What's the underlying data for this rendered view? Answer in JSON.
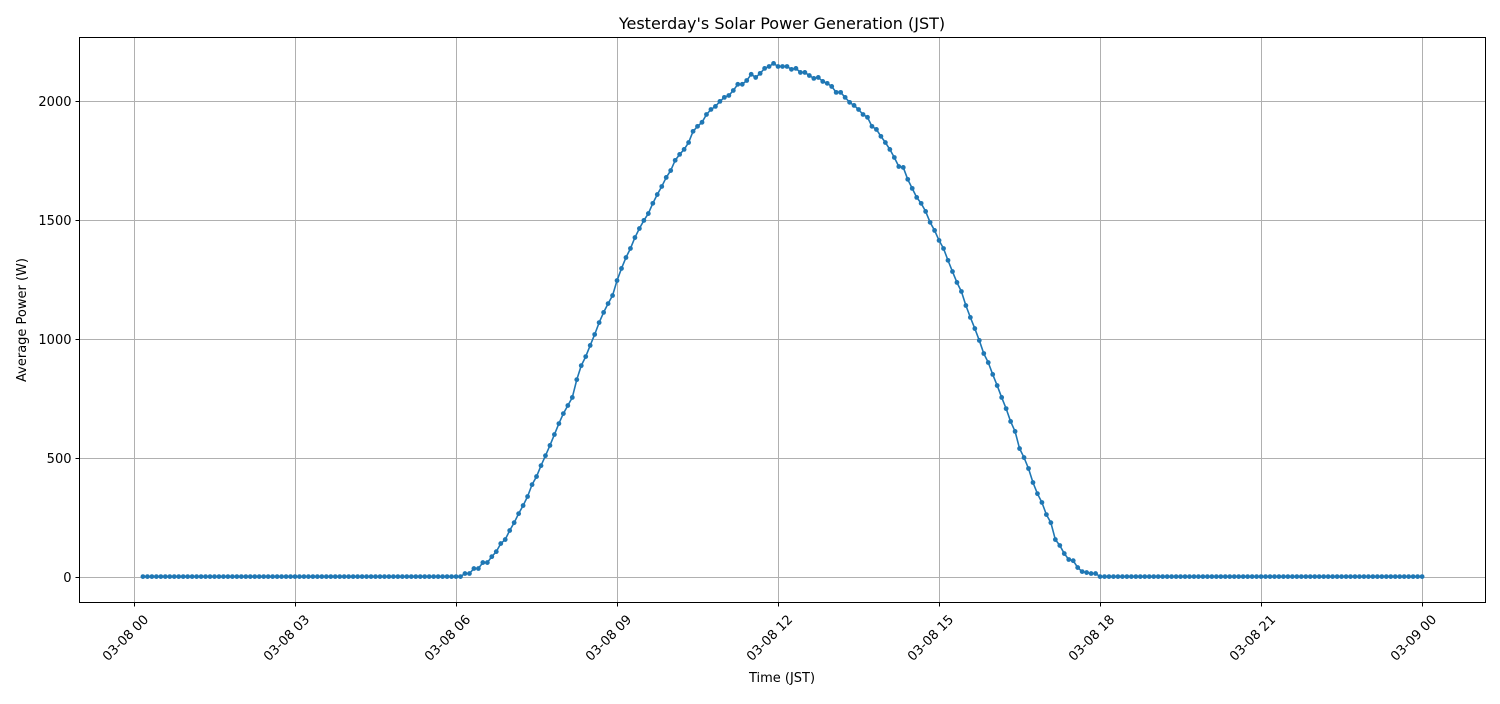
{
  "chart_data": {
    "type": "line",
    "title": "Yesterday's Solar Power Generation (JST)",
    "xlabel": "Time (JST)",
    "ylabel": "Average Power (W)",
    "xlim": [
      "03-07 22:58",
      "03-09 01:10"
    ],
    "ylim": [
      -109,
      2269
    ],
    "grid": true,
    "marker": "circle",
    "color": "#1f77b4",
    "x_ticks": [
      {
        "hour": 0,
        "label": "03-08 00"
      },
      {
        "hour": 3,
        "label": "03-08 03"
      },
      {
        "hour": 6,
        "label": "03-08 06"
      },
      {
        "hour": 9,
        "label": "03-08 09"
      },
      {
        "hour": 12,
        "label": "03-08 12"
      },
      {
        "hour": 15,
        "label": "03-08 15"
      },
      {
        "hour": 18,
        "label": "03-08 18"
      },
      {
        "hour": 21,
        "label": "03-08 21"
      },
      {
        "hour": 24,
        "label": "03-09 00"
      }
    ],
    "y_ticks": [
      0,
      500,
      1000,
      1500,
      2000
    ],
    "series": [
      {
        "x_start": "03-08 00:10",
        "x_interval_minutes": 5,
        "values": [
          0,
          0,
          0,
          0,
          0,
          0,
          0,
          0,
          0,
          0,
          0,
          0,
          0,
          0,
          0,
          0,
          0,
          0,
          0,
          0,
          0,
          0,
          0,
          0,
          0,
          0,
          0,
          0,
          0,
          0,
          0,
          0,
          0,
          0,
          0,
          0,
          0,
          0,
          0,
          0,
          0,
          0,
          0,
          0,
          0,
          0,
          0,
          0,
          0,
          0,
          0,
          0,
          0,
          0,
          0,
          0,
          0,
          0,
          0,
          0,
          0,
          0,
          0,
          0,
          0,
          0,
          0,
          0,
          0,
          0,
          0,
          0,
          13,
          13,
          34,
          34,
          59,
          59,
          84,
          105,
          139,
          156,
          194,
          227,
          265,
          299,
          337,
          387,
          421,
          467,
          509,
          552,
          598,
          644,
          686,
          720,
          754,
          829,
          888,
          926,
          973,
          1019,
          1069,
          1112,
          1149,
          1183,
          1246,
          1297,
          1343,
          1381,
          1427,
          1465,
          1499,
          1528,
          1571,
          1608,
          1642,
          1680,
          1709,
          1752,
          1777,
          1798,
          1827,
          1874,
          1895,
          1912,
          1945,
          1966,
          1979,
          2000,
          2017,
          2025,
          2046,
          2072,
          2072,
          2088,
          2114,
          2101,
          2118,
          2139,
          2147,
          2160,
          2147,
          2147,
          2147,
          2135,
          2139,
          2122,
          2122,
          2109,
          2097,
          2101,
          2084,
          2076,
          2063,
          2038,
          2038,
          2017,
          1996,
          1983,
          1966,
          1945,
          1933,
          1895,
          1882,
          1853,
          1827,
          1798,
          1764,
          1726,
          1722,
          1672,
          1634,
          1596,
          1571,
          1537,
          1491,
          1457,
          1415,
          1381,
          1331,
          1284,
          1238,
          1200,
          1141,
          1091,
          1044,
          994,
          939,
          901,
          851,
          804,
          754,
          707,
          653,
          611,
          539,
          501,
          455,
          396,
          349,
          312,
          261,
          227,
          156,
          131,
          97,
          72,
          67,
          38,
          21,
          17,
          13,
          13,
          0,
          0,
          0,
          0,
          0,
          0,
          0,
          0,
          0,
          0,
          0,
          0,
          0,
          0,
          0,
          0,
          0,
          0,
          0,
          0,
          0,
          0,
          0,
          0,
          0,
          0,
          0,
          0,
          0,
          0,
          0,
          0,
          0,
          0,
          0,
          0,
          0,
          0,
          0,
          0,
          0,
          0,
          0,
          0,
          0,
          0,
          0,
          0,
          0,
          0,
          0,
          0,
          0,
          0,
          0,
          0,
          0,
          0,
          0,
          0,
          0,
          0,
          0,
          0,
          0,
          0,
          0,
          0,
          0,
          0,
          0,
          0,
          0
        ]
      }
    ]
  }
}
